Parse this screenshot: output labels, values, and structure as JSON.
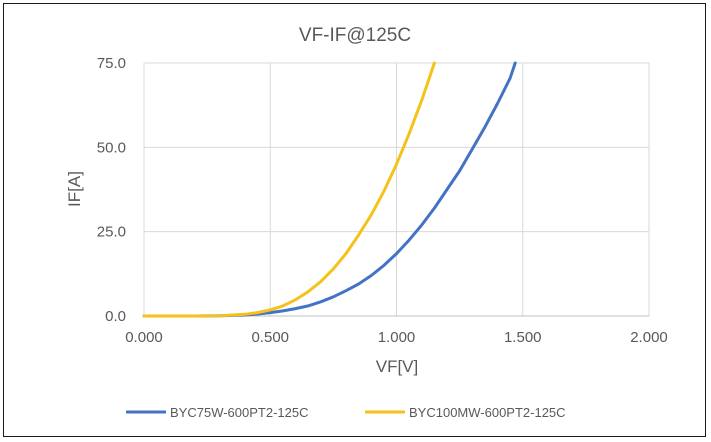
{
  "chart_data": {
    "type": "line",
    "title": "VF-IF@125C",
    "xlabel": "VF[V]",
    "ylabel": "IF[A]",
    "xlim": [
      0,
      2
    ],
    "ylim": [
      0,
      75
    ],
    "x_ticks": [
      "0.000",
      "0.500",
      "1.000",
      "1.500",
      "2.000"
    ],
    "y_ticks": [
      "0.0",
      "25.0",
      "50.0",
      "75.0"
    ],
    "grid": true,
    "legend_position": "bottom",
    "series": [
      {
        "name": "BYC75W-600PT2-125C",
        "color": "#4472C4",
        "x": [
          0,
          0.2,
          0.3,
          0.4,
          0.45,
          0.5,
          0.55,
          0.6,
          0.65,
          0.7,
          0.75,
          0.8,
          0.85,
          0.9,
          0.95,
          1.0,
          1.05,
          1.1,
          1.15,
          1.2,
          1.25,
          1.3,
          1.35,
          1.4,
          1.45,
          1.47
        ],
        "y": [
          0,
          0,
          0.05,
          0.3,
          0.6,
          1.0,
          1.5,
          2.2,
          3.0,
          4.2,
          5.7,
          7.5,
          9.5,
          12.0,
          15.0,
          18.5,
          22.5,
          27.0,
          32.0,
          37.5,
          43.0,
          49.5,
          56.0,
          63.0,
          70.5,
          75.0
        ]
      },
      {
        "name": "BYC100MW-600PT2-125C",
        "color": "#F4C21B",
        "x": [
          0,
          0.2,
          0.3,
          0.4,
          0.45,
          0.5,
          0.55,
          0.6,
          0.65,
          0.7,
          0.75,
          0.8,
          0.85,
          0.9,
          0.95,
          1.0,
          1.05,
          1.1,
          1.15
        ],
        "y": [
          0,
          0,
          0.1,
          0.5,
          1.0,
          1.8,
          3.0,
          4.8,
          7.2,
          10.2,
          14.0,
          18.5,
          24.0,
          30.0,
          37.0,
          45.0,
          54.0,
          64.0,
          75.0
        ]
      }
    ]
  }
}
